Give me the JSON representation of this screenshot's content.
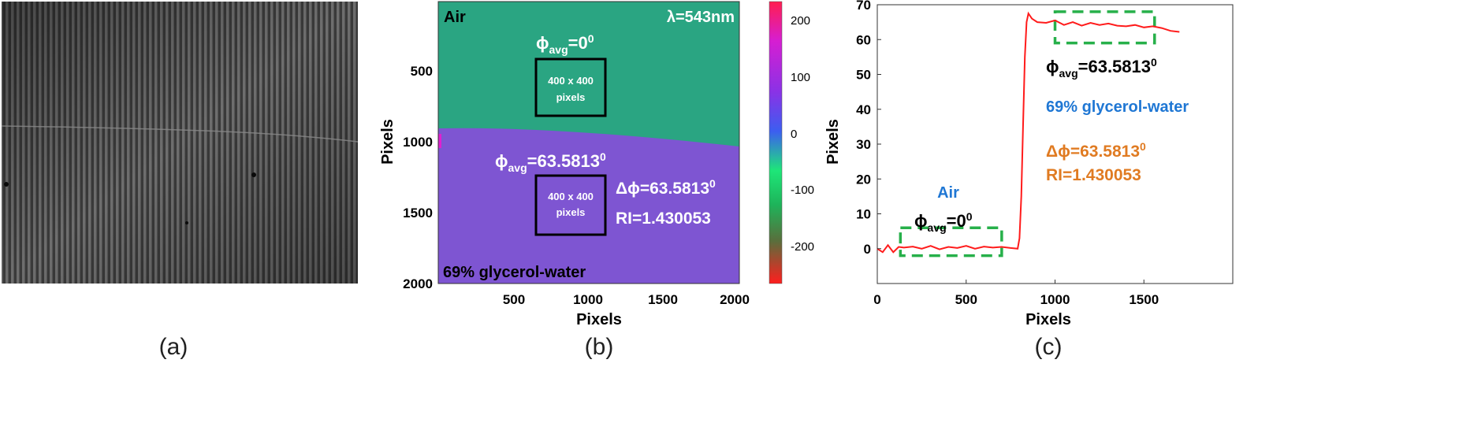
{
  "panels": [
    {
      "label": "(a)"
    },
    {
      "label": "(b)"
    },
    {
      "label": "(c)"
    }
  ],
  "colors": {
    "air_region": "#2aa582",
    "glycerol_region": "#7e55d2",
    "air_label": "#1f77d4",
    "delta_label": "#e07b22",
    "roi_box": "#27b04a",
    "line": "#ff1b1b"
  },
  "panel_b": {
    "wavelength": "λ=543nm",
    "air_label": "Air",
    "glycerol_label": "69% glycerol-water",
    "phi_air": {
      "base": "ϕ",
      "sub": "avg",
      "mid": "=0",
      "sup": "0"
    },
    "phi_gly": {
      "base": "ϕ",
      "sub": "avg",
      "mid": "=63.5813",
      "sup": "0"
    },
    "roi_line1": "400 x 400",
    "roi_line2": "pixels",
    "delta_phi": {
      "mid": "Δϕ=63.5813",
      "sup": "0"
    },
    "ri": "RI=1.430053",
    "xlabel": "Pixels",
    "ylabel": "Pixels",
    "xticks": [
      "500",
      "1000",
      "1500",
      "2000"
    ],
    "yticks": [
      "500",
      "1000",
      "1500",
      "2000"
    ],
    "colorbar_ticks": [
      "200",
      "100",
      "0",
      "-100",
      "-200"
    ]
  },
  "panel_c": {
    "phi_air": {
      "base": "ϕ",
      "sub": "avg",
      "mid": "=0",
      "sup": "0"
    },
    "phi_gly": {
      "base": "ϕ",
      "sub": "avg",
      "mid": "=63.5813",
      "sup": "0"
    },
    "air_label": "Air",
    "glycerol_label": "69% glycerol-water",
    "delta_phi": {
      "mid": "Δϕ=63.5813",
      "sup": "0"
    },
    "ri": "RI=1.430053"
  },
  "chart_data": [
    {
      "type": "heatmap",
      "panel": "(b)",
      "xlabel": "Pixels",
      "ylabel": "Pixels",
      "xlim": [
        0,
        2000
      ],
      "ylim": [
        0,
        2000
      ],
      "xticks": [
        500,
        1000,
        1500,
        2000
      ],
      "yticks": [
        500,
        1000,
        1500,
        2000
      ],
      "colorbar_range": [
        -270,
        230
      ],
      "colorbar_ticks": [
        200,
        100,
        0,
        -100,
        -200
      ],
      "regions": [
        {
          "name": "Air",
          "phase_avg": 0
        },
        {
          "name": "69% glycerol-water",
          "phase_avg": 63.5813
        }
      ],
      "boundary_y": [
        [
          0,
          910
        ],
        [
          2000,
          1040
        ]
      ],
      "rois": [
        {
          "x": [
            650,
            1100
          ],
          "y": [
            350,
            800
          ],
          "label": "400 x 400 pixels"
        },
        {
          "x": [
            650,
            1100
          ],
          "y": [
            1200,
            1650
          ],
          "label": "400 x 400 pixels"
        }
      ]
    },
    {
      "type": "line",
      "panel": "(c)",
      "xlabel": "Pixels",
      "ylabel": "Pixels",
      "xlim": [
        0,
        2000
      ],
      "ylim": [
        -10,
        70
      ],
      "xticks": [
        0,
        500,
        1000,
        1500
      ],
      "yticks": [
        0,
        10,
        20,
        30,
        40,
        50,
        60,
        70
      ],
      "series": [
        {
          "x": [
            0,
            30,
            60,
            90,
            120,
            150,
            200,
            250,
            300,
            350,
            400,
            450,
            500,
            550,
            600,
            650,
            700,
            750,
            790,
            800,
            810,
            820,
            830,
            840,
            850,
            870,
            900,
            950,
            1000,
            1050,
            1100,
            1150,
            1200,
            1250,
            1300,
            1350,
            1400,
            1450,
            1500,
            1550,
            1600,
            1650,
            1700
          ],
          "y": [
            0,
            -1,
            1,
            -1,
            0.5,
            0.3,
            0.6,
            0,
            0.8,
            -0.2,
            0.5,
            0.2,
            0.8,
            0,
            0.6,
            0.3,
            0.5,
            0.2,
            0,
            3,
            15,
            35,
            55,
            65,
            67.5,
            66,
            65,
            64.8,
            65.5,
            64.2,
            65,
            64,
            64.8,
            64.2,
            64.6,
            64,
            63.8,
            64.2,
            63.5,
            63.8,
            63.3,
            62.5,
            62.2
          ]
        }
      ],
      "rois": [
        {
          "x": [
            130,
            700
          ],
          "y": [
            -2,
            6
          ]
        },
        {
          "x": [
            1000,
            1560
          ],
          "y": [
            59,
            68
          ]
        }
      ]
    }
  ]
}
